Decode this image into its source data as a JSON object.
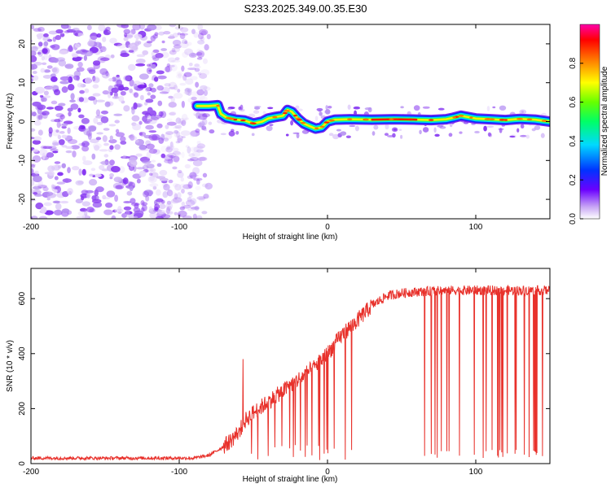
{
  "title": "S233.2025.349.00.35.E30",
  "chart_data": [
    {
      "type": "heatmap",
      "xlabel": "Height of straight line (km)",
      "ylabel": "Frequency (Hz)",
      "xlim": [
        -200,
        150
      ],
      "ylim": [
        -25,
        25
      ],
      "x_ticks": [
        -200,
        -100,
        0,
        100
      ],
      "y_ticks": [
        -20,
        -10,
        0,
        10,
        20
      ],
      "x_tick_labels": [
        "-200",
        "-100",
        "0",
        "100"
      ],
      "y_tick_labels": [
        "-20",
        "-10",
        "0",
        "10",
        "20"
      ],
      "noise_region_x": [
        -200,
        -85
      ],
      "ridge": {
        "x": [
          -88,
          -80,
          -74,
          -72,
          -68,
          -62,
          -56,
          -50,
          -44,
          -40,
          -35,
          -30,
          -27,
          -24,
          -20,
          -16,
          -12,
          -8,
          -4,
          0,
          5,
          15,
          30,
          45,
          60,
          70,
          80,
          85,
          90,
          100,
          110,
          120,
          130,
          140,
          150
        ],
        "freq": [
          4,
          4,
          4.2,
          2,
          1,
          0.5,
          0.3,
          -0.5,
          0,
          0.8,
          1.2,
          1.5,
          3,
          2.5,
          0.8,
          -0.5,
          -1.2,
          -1.8,
          -1.5,
          0,
          0.5,
          0.6,
          0.5,
          0.6,
          0.5,
          0.4,
          0.6,
          1,
          1.5,
          0.8,
          0.6,
          0.4,
          0.7,
          0.5,
          0
        ],
        "peak_x_range": [
          20,
          65
        ]
      },
      "colorbar": {
        "label": "Normalized spectral amplitude",
        "range": [
          0,
          1
        ],
        "ticks": [
          0.0,
          0.2,
          0.4,
          0.6,
          0.8
        ],
        "tick_labels": [
          "0.0",
          "0.2",
          "0.4",
          "0.6",
          "0.8"
        ]
      }
    },
    {
      "type": "line",
      "xlabel": "Height of straight line (km)",
      "ylabel": "SNR (10 * v/v)",
      "xlim": [
        -200,
        150
      ],
      "ylim": [
        0,
        710
      ],
      "x_ticks": [
        -200,
        -100,
        0,
        100
      ],
      "y_ticks": [
        0,
        200,
        400,
        600
      ],
      "x_tick_labels": [
        "-200",
        "-100",
        "0",
        "100"
      ],
      "y_tick_labels": [
        "0",
        "200",
        "400",
        "600"
      ],
      "series": [
        {
          "name": "SNR",
          "color": "#e8312b",
          "x": [
            -200,
            -180,
            -160,
            -140,
            -120,
            -100,
            -90,
            -80,
            -72,
            -65,
            -60,
            -55,
            -50,
            -40,
            -30,
            -20,
            -10,
            0,
            10,
            20,
            30,
            40,
            50,
            60,
            80,
            100,
            120,
            140,
            150
          ],
          "values": [
            20,
            20,
            20,
            20,
            20,
            20,
            20,
            30,
            55,
            85,
            115,
            160,
            185,
            225,
            265,
            305,
            345,
            400,
            470,
            520,
            575,
            610,
            620,
            625,
            630,
            630,
            630,
            630,
            630
          ],
          "dropout_x_range": [
            65,
            148
          ],
          "spike_at_x": -57,
          "spike_value": 380
        }
      ]
    }
  ],
  "colors": {
    "line": "#e8312b",
    "noise": "#8a3bf0",
    "axis": "#000000"
  }
}
